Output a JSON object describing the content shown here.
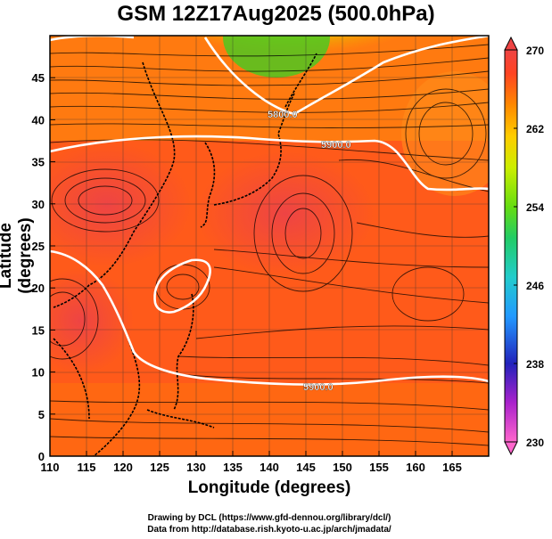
{
  "title": "GSM 12Z17Aug2025 (500.0hPa)",
  "axes": {
    "xlabel": "Longitude (degrees)",
    "ylabel": "Latitude  (degrees)",
    "x_ticks": [
      110,
      115,
      120,
      125,
      130,
      135,
      140,
      145,
      150,
      155,
      160,
      165
    ],
    "y_ticks": [
      0,
      5,
      10,
      15,
      20,
      25,
      30,
      35,
      40,
      45
    ],
    "x_range": [
      110,
      170
    ],
    "y_range": [
      0,
      50
    ]
  },
  "colorbar": {
    "ticks": [
      230,
      238,
      246,
      254,
      262,
      270
    ],
    "range": [
      230,
      270
    ],
    "colors": [
      "#ff66cc",
      "#aa22cc",
      "#2222bb",
      "#2299ff",
      "#22cccc",
      "#22cc66",
      "#66dd11",
      "#ccee00",
      "#ffcc00",
      "#ff8800",
      "#ff4422",
      "#ee4444"
    ]
  },
  "contours": {
    "labels": [
      "5800.0",
      "5900.0",
      "5900.0"
    ]
  },
  "credits": [
    "Drawing by DCL (https://www.gfd-dennou.org/library/dcl/)",
    "Data from http://database.rish.kyoto-u.ac.jp/arch/jmadata/"
  ]
}
